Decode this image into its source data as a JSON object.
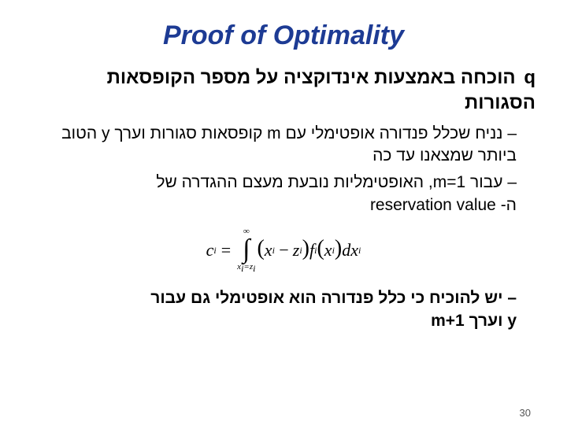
{
  "title": {
    "text": "Proof of Optimality",
    "color": "#1d3b94",
    "fontsize": 34
  },
  "text_color": "#000000",
  "body_fontsize": 24,
  "sub_fontsize": 21,
  "bullets": {
    "main": "הוכחה באמצעות אינדוקציה על מספר הקופסאות הסגורות",
    "main_marker": "q",
    "sub1": "נניח שכלל פנדורה אופטימלי עם m קופסאות סגורות וערך y הטוב ביותר שמצאנו עד כה",
    "sub2_part1": "עבור m=1, האופטימליות נובעת מעצם ההגדרה של",
    "sub2_part2": "ה- reservation value",
    "sub3_part1": "יש להוכיח כי כלל פנדורה הוא אופטימלי גם עבור",
    "sub3_part2": "m+1 וערך y",
    "dash": "–"
  },
  "formula": {
    "lhs_var": "c",
    "lhs_sub": "i",
    "int_upper": "∞",
    "int_lower_x": "x",
    "int_lower_sub": "i",
    "int_lower_eq": "=",
    "int_lower_z": "z",
    "term_x": "x",
    "term_sub": "i",
    "minus": "−",
    "term_z": "z",
    "f": "f",
    "dx": "dx",
    "fontsize": 22
  },
  "pagenum": {
    "text": "30",
    "fontsize": 13,
    "color": "#555555"
  }
}
